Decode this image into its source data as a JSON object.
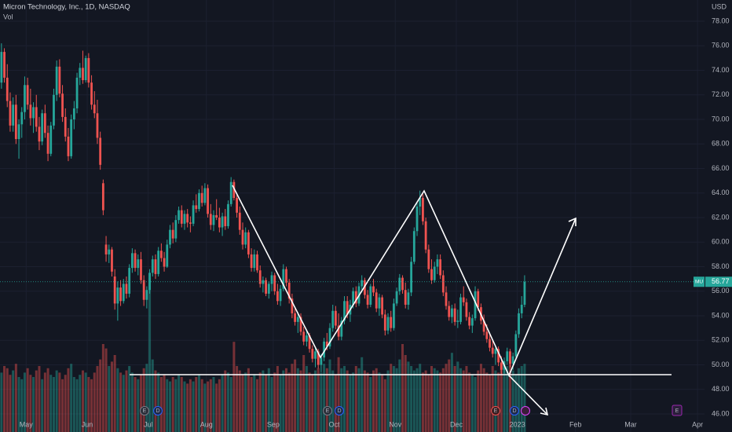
{
  "chart_data": {
    "type": "candlestick",
    "title": "Micron Technology, Inc., 1D, NASDAQ",
    "volume_label": "Vol",
    "currency": "USD",
    "symbol": "MU",
    "last_price": 56.77,
    "up_color": "#26a69a",
    "down_color": "#ef5350",
    "grid": true,
    "ylim": [
      44.53,
      79.73
    ],
    "yticks": [
      {
        "value": 46,
        "label": "46.00"
      },
      {
        "value": 48,
        "label": "48.00"
      },
      {
        "value": 50,
        "label": "50.00"
      },
      {
        "value": 52,
        "label": "52.00"
      },
      {
        "value": 54,
        "label": "54.00"
      },
      {
        "value": 56,
        "label": "56.00"
      },
      {
        "value": 58,
        "label": "58.00"
      },
      {
        "value": 60,
        "label": "60.00"
      },
      {
        "value": 62,
        "label": "62.00"
      },
      {
        "value": 64,
        "label": "64.00"
      },
      {
        "value": 66,
        "label": "66.00"
      },
      {
        "value": 68,
        "label": "68.00"
      },
      {
        "value": 70,
        "label": "70.00"
      },
      {
        "value": 72,
        "label": "72.00"
      },
      {
        "value": 74,
        "label": "74.00"
      },
      {
        "value": 76,
        "label": "76.00"
      },
      {
        "value": 78,
        "label": "78.00"
      }
    ],
    "xlim": [
      0,
      242.4
    ],
    "xticks": [
      {
        "value": 9,
        "label": "May"
      },
      {
        "value": 30,
        "label": "Jun"
      },
      {
        "value": 51,
        "label": "Jul"
      },
      {
        "value": 71,
        "label": "Aug"
      },
      {
        "value": 94,
        "label": "Sep"
      },
      {
        "value": 115,
        "label": "Oct"
      },
      {
        "value": 136,
        "label": "Nov"
      },
      {
        "value": 157,
        "label": "Dec"
      },
      {
        "value": 178,
        "label": "2023"
      },
      {
        "value": 198,
        "label": "Feb"
      },
      {
        "value": 217,
        "label": "Mar"
      },
      {
        "value": 240,
        "label": "Apr"
      }
    ],
    "events": [
      "E",
      "D",
      "E",
      "D",
      "E",
      "D",
      "E"
    ],
    "ohlc": [
      [
        73.0,
        76.2,
        72.5,
        75.5
      ],
      [
        75.5,
        75.8,
        73.0,
        73.4
      ],
      [
        73.4,
        74.5,
        71.0,
        71.5
      ],
      [
        71.5,
        72.2,
        69.0,
        69.5
      ],
      [
        69.5,
        71.8,
        69.0,
        71.2
      ],
      [
        71.2,
        72.0,
        68.0,
        68.4
      ],
      [
        68.4,
        70.0,
        66.8,
        69.6
      ],
      [
        69.6,
        71.0,
        68.5,
        70.6
      ],
      [
        70.6,
        73.5,
        70.0,
        72.8
      ],
      [
        72.8,
        73.4,
        70.8,
        71.2
      ],
      [
        71.2,
        72.5,
        69.5,
        70.1
      ],
      [
        70.1,
        71.4,
        68.9,
        71.0
      ],
      [
        71.0,
        72.0,
        69.0,
        69.4
      ],
      [
        69.4,
        70.2,
        67.5,
        68.2
      ],
      [
        68.2,
        70.8,
        67.9,
        70.5
      ],
      [
        70.5,
        71.2,
        68.5,
        68.9
      ],
      [
        68.9,
        69.5,
        66.6,
        67.2
      ],
      [
        67.2,
        69.8,
        67.0,
        69.5
      ],
      [
        69.5,
        72.5,
        69.2,
        72.0
      ],
      [
        72.0,
        74.8,
        71.5,
        74.3
      ],
      [
        74.3,
        74.9,
        71.8,
        72.1
      ],
      [
        72.1,
        72.8,
        69.8,
        70.2
      ],
      [
        70.2,
        70.9,
        68.2,
        68.6
      ],
      [
        68.6,
        69.3,
        66.6,
        67.0
      ],
      [
        67.0,
        70.4,
        66.8,
        70.0
      ],
      [
        70.0,
        71.5,
        69.2,
        70.9
      ],
      [
        70.9,
        73.8,
        70.5,
        73.4
      ],
      [
        73.4,
        74.6,
        72.8,
        74.2
      ],
      [
        74.2,
        75.6,
        72.9,
        73.2
      ],
      [
        73.2,
        75.2,
        73.0,
        75.0
      ],
      [
        75.0,
        75.4,
        72.6,
        73.0
      ],
      [
        73.0,
        73.6,
        70.8,
        71.2
      ],
      [
        71.2,
        72.3,
        70.1,
        70.5
      ],
      [
        70.5,
        71.6,
        68.0,
        68.5
      ],
      [
        68.5,
        69.0,
        65.9,
        66.3
      ],
      [
        64.8,
        65.1,
        62.2,
        62.6
      ],
      [
        59.8,
        60.5,
        58.4,
        59.0
      ],
      [
        59.0,
        59.8,
        58.3,
        59.4
      ],
      [
        59.4,
        59.6,
        57.2,
        57.6
      ],
      [
        57.2,
        57.8,
        54.5,
        55.0
      ],
      [
        55.0,
        56.8,
        53.6,
        56.3
      ],
      [
        56.3,
        56.9,
        54.8,
        55.2
      ],
      [
        55.2,
        57.0,
        55.0,
        56.6
      ],
      [
        56.6,
        57.2,
        55.4,
        55.8
      ],
      [
        55.8,
        58.2,
        55.5,
        57.9
      ],
      [
        57.9,
        59.5,
        57.5,
        59.1
      ],
      [
        59.1,
        59.4,
        57.6,
        57.9
      ],
      [
        57.9,
        59.0,
        57.3,
        58.6
      ],
      [
        58.6,
        59.2,
        56.6,
        56.9
      ],
      [
        56.9,
        57.3,
        54.8,
        55.3
      ],
      [
        55.3,
        56.4,
        54.6,
        56.1
      ],
      [
        56.1,
        57.8,
        55.8,
        57.5
      ],
      [
        57.5,
        58.9,
        57.2,
        58.6
      ],
      [
        58.6,
        59.0,
        57.0,
        57.4
      ],
      [
        57.4,
        59.6,
        57.2,
        59.3
      ],
      [
        59.3,
        59.9,
        58.4,
        58.7
      ],
      [
        58.7,
        59.2,
        57.6,
        58.0
      ],
      [
        58.0,
        60.2,
        57.9,
        59.8
      ],
      [
        59.8,
        61.4,
        59.5,
        61.0
      ],
      [
        61.0,
        61.6,
        59.9,
        60.3
      ],
      [
        60.3,
        62.2,
        60.0,
        61.8
      ],
      [
        61.8,
        62.9,
        61.5,
        62.6
      ],
      [
        62.6,
        63.0,
        61.2,
        61.5
      ],
      [
        61.5,
        62.6,
        61.0,
        62.3
      ],
      [
        62.3,
        62.7,
        61.2,
        61.6
      ],
      [
        61.6,
        62.1,
        60.8,
        61.5
      ],
      [
        61.5,
        63.4,
        61.3,
        63.0
      ],
      [
        63.0,
        63.9,
        62.4,
        62.7
      ],
      [
        62.7,
        64.3,
        62.5,
        64.0
      ],
      [
        64.0,
        64.6,
        62.9,
        63.2
      ],
      [
        63.2,
        64.8,
        63.0,
        64.4
      ],
      [
        64.4,
        64.7,
        62.0,
        62.3
      ],
      [
        62.3,
        63.1,
        61.0,
        61.4
      ],
      [
        61.4,
        62.6,
        60.9,
        62.2
      ],
      [
        62.2,
        63.5,
        61.8,
        62.0
      ],
      [
        62.0,
        62.8,
        60.8,
        61.2
      ],
      [
        61.2,
        62.4,
        60.5,
        62.1
      ],
      [
        62.1,
        62.7,
        61.0,
        61.3
      ],
      [
        61.3,
        63.4,
        61.1,
        63.1
      ],
      [
        63.1,
        65.3,
        62.9,
        64.9
      ],
      [
        64.9,
        65.1,
        63.4,
        63.6
      ],
      [
        63.6,
        64.0,
        62.0,
        62.4
      ],
      [
        62.4,
        62.9,
        60.6,
        61.0
      ],
      [
        61.0,
        61.6,
        59.4,
        59.8
      ],
      [
        59.8,
        61.2,
        59.5,
        60.8
      ],
      [
        60.8,
        61.0,
        58.7,
        59.0
      ],
      [
        59.0,
        59.5,
        57.6,
        57.9
      ],
      [
        57.9,
        59.4,
        57.6,
        59.0
      ],
      [
        59.0,
        59.3,
        57.5,
        57.7
      ],
      [
        57.7,
        58.1,
        56.3,
        56.6
      ],
      [
        56.6,
        57.2,
        55.9,
        56.9
      ],
      [
        56.9,
        57.1,
        55.6,
        55.8
      ],
      [
        55.8,
        56.8,
        55.4,
        56.6
      ],
      [
        56.6,
        57.6,
        56.0,
        57.3
      ],
      [
        57.3,
        57.5,
        55.7,
        56.0
      ],
      [
        56.0,
        56.6,
        54.9,
        55.2
      ],
      [
        55.2,
        56.5,
        54.8,
        56.2
      ],
      [
        56.2,
        58.2,
        56.0,
        57.8
      ],
      [
        57.8,
        58.0,
        56.4,
        56.7
      ],
      [
        56.7,
        57.0,
        55.0,
        55.4
      ],
      [
        55.4,
        55.8,
        53.8,
        54.2
      ],
      [
        54.2,
        54.6,
        53.2,
        53.5
      ],
      [
        53.5,
        54.3,
        52.6,
        53.9
      ],
      [
        53.9,
        54.2,
        52.4,
        52.7
      ],
      [
        52.7,
        53.1,
        51.6,
        51.9
      ],
      [
        51.9,
        52.8,
        51.5,
        52.4
      ],
      [
        52.4,
        52.6,
        51.0,
        51.3
      ],
      [
        51.3,
        51.6,
        50.2,
        50.5
      ],
      [
        50.5,
        51.4,
        49.8,
        51.1
      ],
      [
        51.1,
        51.3,
        49.7,
        50.0
      ],
      [
        50.0,
        50.9,
        49.4,
        50.6
      ],
      [
        50.6,
        52.2,
        50.3,
        51.9
      ],
      [
        51.9,
        52.6,
        51.2,
        51.5
      ],
      [
        51.5,
        53.4,
        51.3,
        53.0
      ],
      [
        53.0,
        54.9,
        52.7,
        54.4
      ],
      [
        54.4,
        54.8,
        52.9,
        53.2
      ],
      [
        53.2,
        54.2,
        52.0,
        52.3
      ],
      [
        52.3,
        53.9,
        52.0,
        53.6
      ],
      [
        53.6,
        55.6,
        53.3,
        55.2
      ],
      [
        55.2,
        55.6,
        53.8,
        54.1
      ],
      [
        54.1,
        55.3,
        53.5,
        54.9
      ],
      [
        54.9,
        56.3,
        54.6,
        56.0
      ],
      [
        56.0,
        56.4,
        54.7,
        55.0
      ],
      [
        55.0,
        56.7,
        54.8,
        56.4
      ],
      [
        56.4,
        57.3,
        55.9,
        56.9
      ],
      [
        56.9,
        57.1,
        55.4,
        55.7
      ],
      [
        55.7,
        56.1,
        54.6,
        54.9
      ],
      [
        54.9,
        56.6,
        54.7,
        56.4
      ],
      [
        56.4,
        57.0,
        55.6,
        55.9
      ],
      [
        55.9,
        56.2,
        54.3,
        54.6
      ],
      [
        54.6,
        55.8,
        54.0,
        55.5
      ],
      [
        55.5,
        55.7,
        53.8,
        54.1
      ],
      [
        54.1,
        54.5,
        52.4,
        52.8
      ],
      [
        52.8,
        54.2,
        52.5,
        53.9
      ],
      [
        53.9,
        54.4,
        52.7,
        53.0
      ],
      [
        53.0,
        55.4,
        52.8,
        55.0
      ],
      [
        55.0,
        56.3,
        54.8,
        56.0
      ],
      [
        56.0,
        57.4,
        55.7,
        57.1
      ],
      [
        57.1,
        57.3,
        55.8,
        56.1
      ],
      [
        56.1,
        56.7,
        54.6,
        54.9
      ],
      [
        54.9,
        56.2,
        54.5,
        55.9
      ],
      [
        55.9,
        58.8,
        55.6,
        58.4
      ],
      [
        58.4,
        61.2,
        58.2,
        60.9
      ],
      [
        60.9,
        63.3,
        60.5,
        62.9
      ],
      [
        62.9,
        64.2,
        62.2,
        63.6
      ],
      [
        63.6,
        63.9,
        61.4,
        61.7
      ],
      [
        61.7,
        62.0,
        59.1,
        59.4
      ],
      [
        59.4,
        59.8,
        57.5,
        57.8
      ],
      [
        57.8,
        58.6,
        56.6,
        56.9
      ],
      [
        56.9,
        58.4,
        56.7,
        58.0
      ],
      [
        58.0,
        59.0,
        57.4,
        58.6
      ],
      [
        58.6,
        59.0,
        57.0,
        57.3
      ],
      [
        57.3,
        57.7,
        55.6,
        55.9
      ],
      [
        55.9,
        56.4,
        54.5,
        54.8
      ],
      [
        54.8,
        55.2,
        53.6,
        53.9
      ],
      [
        53.9,
        54.9,
        53.4,
        54.6
      ],
      [
        54.6,
        55.0,
        53.2,
        53.5
      ],
      [
        53.5,
        54.5,
        53.0,
        53.6
      ],
      [
        53.5,
        55.8,
        53.3,
        55.5
      ],
      [
        55.5,
        56.4,
        54.8,
        55.1
      ],
      [
        55.1,
        55.4,
        53.6,
        53.9
      ],
      [
        53.9,
        54.3,
        52.9,
        53.2
      ],
      [
        53.2,
        54.1,
        52.6,
        53.8
      ],
      [
        53.8,
        56.4,
        53.6,
        56.0
      ],
      [
        56.0,
        56.2,
        54.4,
        54.7
      ],
      [
        54.7,
        55.0,
        53.3,
        53.6
      ],
      [
        53.6,
        54.1,
        52.4,
        52.7
      ],
      [
        52.7,
        53.3,
        51.8,
        52.1
      ],
      [
        52.1,
        52.5,
        51.1,
        51.4
      ],
      [
        51.4,
        52.0,
        50.6,
        50.9
      ],
      [
        50.9,
        51.6,
        50.0,
        51.3
      ],
      [
        51.3,
        51.5,
        49.9,
        50.2
      ],
      [
        50.2,
        50.7,
        49.2,
        49.6
      ],
      [
        49.6,
        50.6,
        49.3,
        50.3
      ],
      [
        50.3,
        51.4,
        50.0,
        51.1
      ],
      [
        51.1,
        51.3,
        49.8,
        50.1
      ],
      [
        50.1,
        51.0,
        49.6,
        50.7
      ],
      [
        50.7,
        52.8,
        50.5,
        52.5
      ],
      [
        52.5,
        54.6,
        52.2,
        54.2
      ],
      [
        54.2,
        55.6,
        53.8,
        54.9
      ],
      [
        54.9,
        57.3,
        54.7,
        56.77
      ]
    ],
    "volume": [
      27,
      30,
      29,
      26,
      28,
      31,
      25,
      24,
      27,
      29,
      26,
      25,
      28,
      30,
      24,
      27,
      29,
      26,
      25,
      28,
      27,
      24,
      26,
      29,
      31,
      25,
      24,
      26,
      28,
      27,
      25,
      24,
      27,
      30,
      33,
      40,
      38,
      30,
      32,
      35,
      29,
      27,
      26,
      28,
      30,
      27,
      25,
      24,
      26,
      29,
      31,
      70,
      33,
      28,
      27,
      25,
      26,
      24,
      23,
      25,
      24,
      26,
      25,
      23,
      22,
      24,
      23,
      25,
      26,
      24,
      22,
      23,
      24,
      25,
      22,
      24,
      26,
      28,
      27,
      25,
      41,
      30,
      28,
      26,
      27,
      29,
      25,
      26,
      24,
      27,
      28,
      26,
      29,
      25,
      27,
      30,
      26,
      28,
      29,
      27,
      31,
      33,
      29,
      28,
      35,
      30,
      27,
      26,
      28,
      29,
      27,
      31,
      29,
      33,
      28,
      26,
      34,
      29,
      30,
      28,
      26,
      27,
      30,
      29,
      34,
      28,
      27,
      25,
      28,
      29,
      27,
      26,
      24,
      28,
      31,
      30,
      29,
      33,
      40,
      35,
      32,
      30,
      28,
      29,
      31,
      27,
      28,
      26,
      30,
      29,
      28,
      27,
      29,
      31,
      33,
      36,
      30,
      32,
      29,
      28,
      30,
      27,
      26,
      25,
      28,
      31,
      29,
      27,
      26,
      30,
      28,
      27,
      31,
      29,
      30,
      32,
      28,
      26,
      29,
      30,
      31
    ]
  }
}
